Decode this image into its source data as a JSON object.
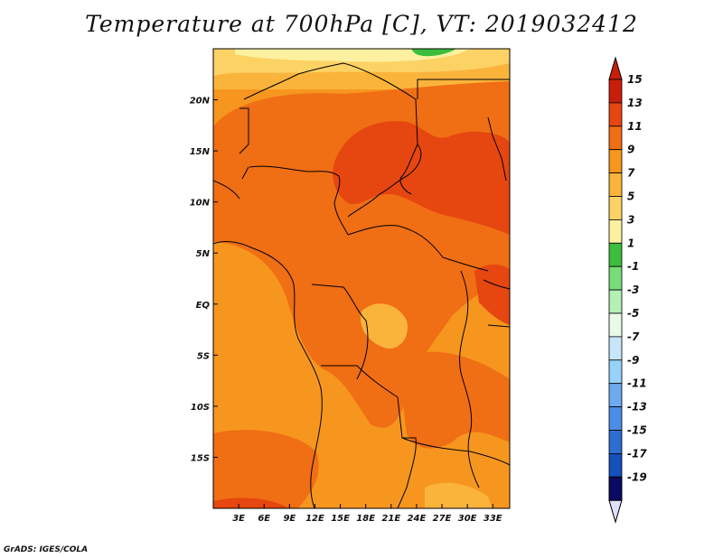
{
  "title": "Temperature at 700hPa [C], VT: 2019032412",
  "credit": "GrADS: IGES/COLA",
  "map": {
    "lon_range": [
      0,
      35
    ],
    "lat_range": [
      -20,
      25
    ],
    "x_ticks": [
      {
        "value": 3,
        "label": "3E"
      },
      {
        "value": 6,
        "label": "6E"
      },
      {
        "value": 9,
        "label": "9E"
      },
      {
        "value": 12,
        "label": "12E"
      },
      {
        "value": 15,
        "label": "15E"
      },
      {
        "value": 18,
        "label": "18E"
      },
      {
        "value": 21,
        "label": "21E"
      },
      {
        "value": 24,
        "label": "24E"
      },
      {
        "value": 27,
        "label": "27E"
      },
      {
        "value": 30,
        "label": "30E"
      },
      {
        "value": 33,
        "label": "33E"
      }
    ],
    "y_ticks": [
      {
        "value": 20,
        "label": "20N"
      },
      {
        "value": 15,
        "label": "15N"
      },
      {
        "value": 10,
        "label": "10N"
      },
      {
        "value": 5,
        "label": "5N"
      },
      {
        "value": 0,
        "label": "EQ"
      },
      {
        "value": -5,
        "label": "5S"
      },
      {
        "value": -10,
        "label": "10S"
      },
      {
        "value": -15,
        "label": "15S"
      }
    ]
  },
  "colorbar": {
    "levels": [
      {
        "label": "15",
        "color": "#c81e0a"
      },
      {
        "label": "13",
        "color": "#e6460f"
      },
      {
        "label": "11",
        "color": "#f06e14"
      },
      {
        "label": "9",
        "color": "#f7961e"
      },
      {
        "label": "7",
        "color": "#fab43c"
      },
      {
        "label": "5",
        "color": "#fcd264"
      },
      {
        "label": "3",
        "color": "#fdf0a0"
      },
      {
        "label": "1",
        "color": "#3cbe3c"
      },
      {
        "label": "-1",
        "color": "#78dc78"
      },
      {
        "label": "-3",
        "color": "#b4f0b4"
      },
      {
        "label": "-5",
        "color": "#e8fae8"
      },
      {
        "label": "-7",
        "color": "#c8e6fa"
      },
      {
        "label": "-9",
        "color": "#96d2fa"
      },
      {
        "label": "-11",
        "color": "#6eaaf0"
      },
      {
        "label": "-13",
        "color": "#4b8ce6"
      },
      {
        "label": "-15",
        "color": "#2d6ed2"
      },
      {
        "label": "-17",
        "color": "#1450be"
      },
      {
        "label": "-19",
        "color": "#0a2d96"
      }
    ],
    "bottom_color": "#0a0a64",
    "under_color": "#e0e0ff"
  }
}
